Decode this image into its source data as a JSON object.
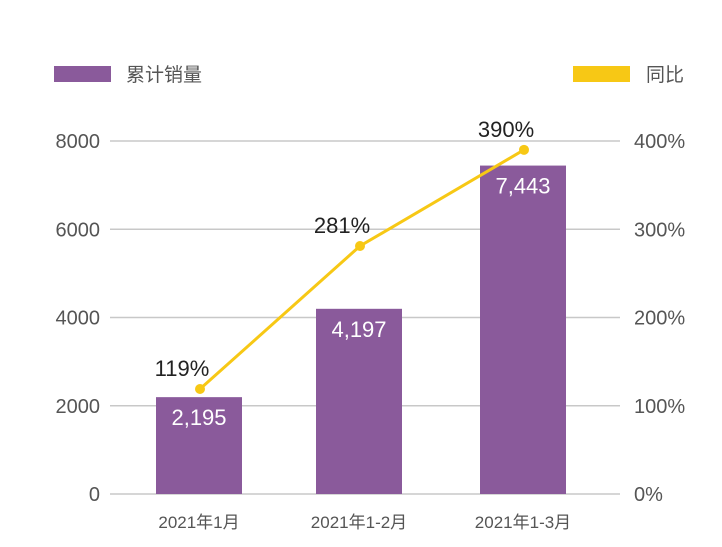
{
  "chart_data": {
    "type": "bar+line",
    "categories": [
      "2021年1月",
      "2021年1-2月",
      "2021年1-3月"
    ],
    "series": [
      {
        "name": "累计销量",
        "type": "bar",
        "axis": "left",
        "values": [
          2195,
          4197,
          7443
        ],
        "labels": [
          "2,195",
          "4,197",
          "7,443"
        ],
        "color": "#8a5a9b"
      },
      {
        "name": "同比",
        "type": "line",
        "axis": "right",
        "values": [
          119,
          281,
          390
        ],
        "labels": [
          "119%",
          "281%",
          "390%"
        ],
        "color": "#f7c815"
      }
    ],
    "y_left": {
      "range": [
        0,
        8000
      ],
      "ticks": [
        "0",
        "2000",
        "4000",
        "6000",
        "8000"
      ]
    },
    "y_right": {
      "range": [
        0,
        400
      ],
      "ticks": [
        "0%",
        "100%",
        "200%",
        "300%",
        "400%"
      ]
    },
    "grid": true,
    "legend": [
      "top-left",
      "top-right"
    ]
  }
}
